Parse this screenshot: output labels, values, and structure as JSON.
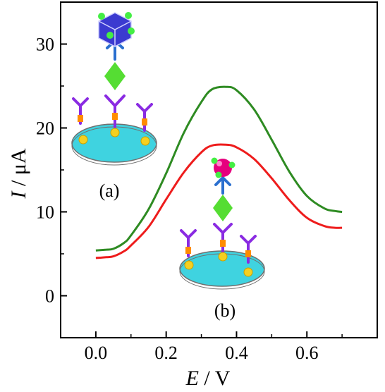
{
  "chart_data": {
    "type": "line",
    "xlabel": {
      "symbol": "E",
      "unit": " / V"
    },
    "ylabel": {
      "symbol": "I",
      "unit": " / μA"
    },
    "xlim": [
      -0.1,
      0.8
    ],
    "ylim": [
      -5,
      35
    ],
    "xticks": [
      {
        "value": 0.0,
        "label": "0.0"
      },
      {
        "value": 0.2,
        "label": "0.2"
      },
      {
        "value": 0.4,
        "label": "0.4"
      },
      {
        "value": 0.6,
        "label": "0.6"
      }
    ],
    "yticks": [
      {
        "value": 0,
        "label": "0"
      },
      {
        "value": 10,
        "label": "10"
      },
      {
        "value": 20,
        "label": "20"
      },
      {
        "value": 30,
        "label": "30"
      }
    ],
    "grid": false,
    "series": [
      {
        "color": "#2e8b22",
        "x": [
          0.0,
          0.03,
          0.05,
          0.08,
          0.1,
          0.15,
          0.2,
          0.25,
          0.3,
          0.33,
          0.37,
          0.4,
          0.45,
          0.5,
          0.55,
          0.6,
          0.65,
          0.68,
          0.7
        ],
        "y": [
          5.4,
          5.5,
          5.6,
          6.3,
          7.2,
          10.3,
          14.6,
          19.4,
          23.1,
          24.6,
          24.9,
          24.5,
          22.2,
          18.6,
          14.8,
          11.9,
          10.4,
          10.1,
          10.0
        ]
      },
      {
        "color": "#ee1c1c",
        "x": [
          0.0,
          0.03,
          0.05,
          0.08,
          0.1,
          0.15,
          0.2,
          0.25,
          0.3,
          0.33,
          0.37,
          0.4,
          0.45,
          0.5,
          0.55,
          0.6,
          0.65,
          0.68,
          0.7
        ],
        "y": [
          4.5,
          4.6,
          4.7,
          5.3,
          6.0,
          8.2,
          11.5,
          14.7,
          17.1,
          17.9,
          18.0,
          17.7,
          16.3,
          14.0,
          11.4,
          9.3,
          8.3,
          8.1,
          8.1
        ]
      }
    ],
    "annotations": [
      {
        "id": "a",
        "text": "(a)"
      },
      {
        "id": "b",
        "text": "(b)"
      }
    ]
  },
  "colors": {
    "disk": "#3fd3e0",
    "disk_edge": "#707070",
    "capture_antibody": "#8a2be2",
    "antibody_tip": "#ff8c00",
    "gold": "#f5d020",
    "antigen": "#55dd33",
    "detection_antibody": "#2a6fcf",
    "label_a_cube": "#3b3ad0",
    "label_b_sphere": "#e6007e",
    "ball": "#44ee44"
  }
}
